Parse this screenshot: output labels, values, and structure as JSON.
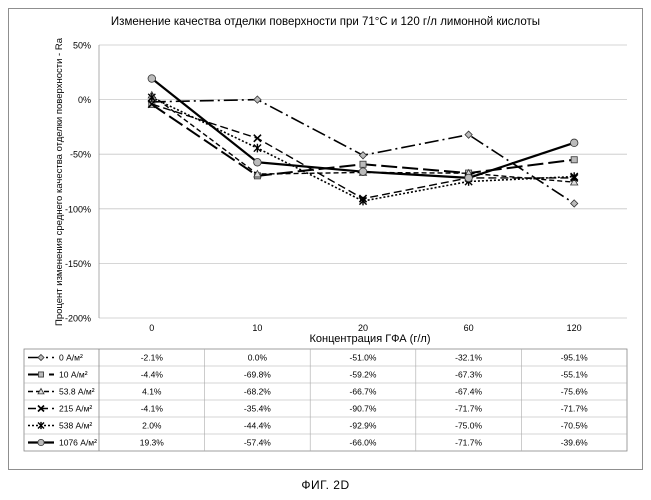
{
  "chart_data": {
    "type": "line",
    "title": "Изменение качества отделки поверхности при 71°C и 120 г/л лимонной кислоты",
    "xlabel": "Концентрация ГФА (г/л)",
    "ylabel": "Процент изменения среднего качества отделки поверхности - Ra",
    "categories": [
      "0",
      "10",
      "20",
      "60",
      "120"
    ],
    "ylim": [
      -200,
      50
    ],
    "yticks": [
      50,
      0,
      -50,
      -100,
      -150,
      -200
    ],
    "ytick_labels": [
      "50%",
      "0%",
      "-50%",
      "-100%",
      "-150%",
      "-200%"
    ],
    "grid": true,
    "legend": "data-table-below",
    "series": [
      {
        "name": "0 А/м²",
        "values": [
          -2.1,
          0.0,
          -51.0,
          -32.1,
          -95.1
        ],
        "table": [
          "-2.1%",
          "0.0%",
          "-51.0%",
          "-32.1%",
          "-95.1%"
        ],
        "marker": "diamond",
        "dash": "14,4,2,4",
        "width": 1.6
      },
      {
        "name": "10 А/м²",
        "values": [
          -4.4,
          -69.8,
          -59.2,
          -67.3,
          -55.1
        ],
        "table": [
          "-4.4%",
          "-69.8%",
          "-59.2%",
          "-67.3%",
          "-55.1%"
        ],
        "marker": "square",
        "dash": "16,5",
        "width": 2
      },
      {
        "name": "53.8 А/м²",
        "values": [
          4.1,
          -68.2,
          -66.7,
          -67.4,
          -75.6
        ],
        "table": [
          "4.1%",
          "-68.2%",
          "-66.7%",
          "-67.4%",
          "-75.6%"
        ],
        "marker": "triangle",
        "dash": "5,3",
        "width": 1.4
      },
      {
        "name": "215 А/м²",
        "values": [
          -4.1,
          -35.4,
          -90.7,
          -71.7,
          -71.7
        ],
        "table": [
          "-4.1%",
          "-35.4%",
          "-90.7%",
          "-71.7%",
          "-71.7%"
        ],
        "marker": "x",
        "dash": "8,4",
        "width": 1.4
      },
      {
        "name": "538 А/м²",
        "values": [
          2.0,
          -44.4,
          -92.9,
          -75.0,
          -70.5
        ],
        "table": [
          "2.0%",
          "-44.4%",
          "-92.9%",
          "-75.0%",
          "-70.5%"
        ],
        "marker": "star",
        "dash": "2,2",
        "width": 1.6
      },
      {
        "name": "1076 А/м²",
        "values": [
          19.3,
          -57.4,
          -66.0,
          -71.7,
          -39.6
        ],
        "table": [
          "19.3%",
          "-57.4%",
          "-66.0%",
          "-71.7%",
          "-39.6%"
        ],
        "marker": "circle",
        "dash": "",
        "width": 2.2
      }
    ]
  },
  "figure_caption": "ФИГ. 2D"
}
